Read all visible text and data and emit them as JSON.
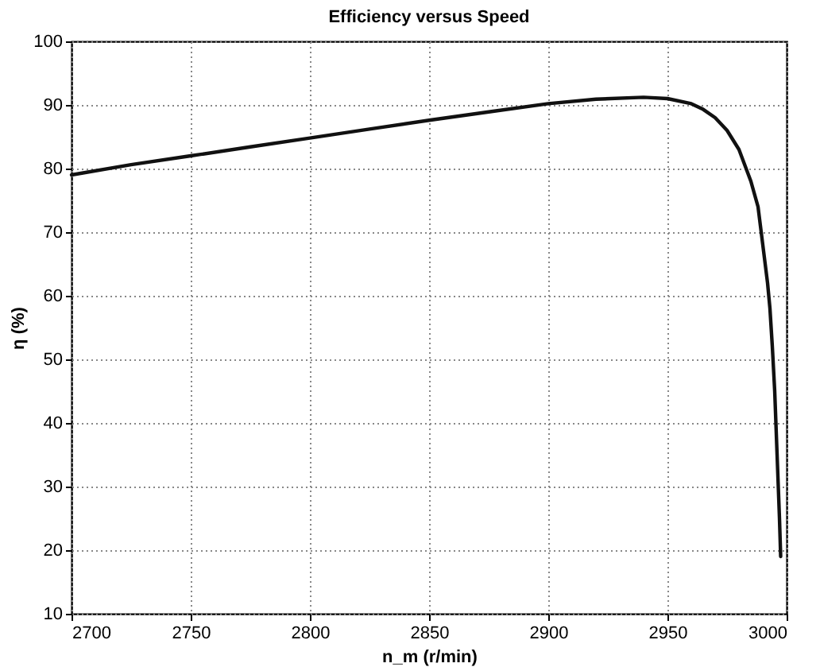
{
  "chart_data": {
    "type": "line",
    "title": "Efficiency versus Speed",
    "xlabel": "n_m (r/min)",
    "ylabel": "η (%)",
    "x": [
      2700,
      2725,
      2750,
      2775,
      2800,
      2825,
      2850,
      2875,
      2900,
      2920,
      2940,
      2950,
      2960,
      2965,
      2970,
      2975,
      2980,
      2985,
      2988,
      2990,
      2992,
      2993,
      2994,
      2995,
      2996,
      2997,
      2997.5
    ],
    "series": [
      {
        "color": "#111111",
        "values": [
          79,
          80.6,
          82,
          83.4,
          84.8,
          86.2,
          87.6,
          88.9,
          90.2,
          90.9,
          91.2,
          91.0,
          90.2,
          89.3,
          88,
          86,
          83,
          78,
          74,
          68,
          62,
          58,
          52,
          45,
          35,
          25,
          19
        ]
      }
    ],
    "xlim": [
      2700,
      3000
    ],
    "xticks": [
      2700,
      2750,
      2800,
      2850,
      2900,
      2950,
      3000
    ],
    "ylim": [
      10,
      100
    ],
    "yticks": [
      10,
      20,
      30,
      40,
      50,
      60,
      70,
      80,
      90,
      100
    ],
    "grid": true,
    "line_style": "solid",
    "marker": "none"
  }
}
